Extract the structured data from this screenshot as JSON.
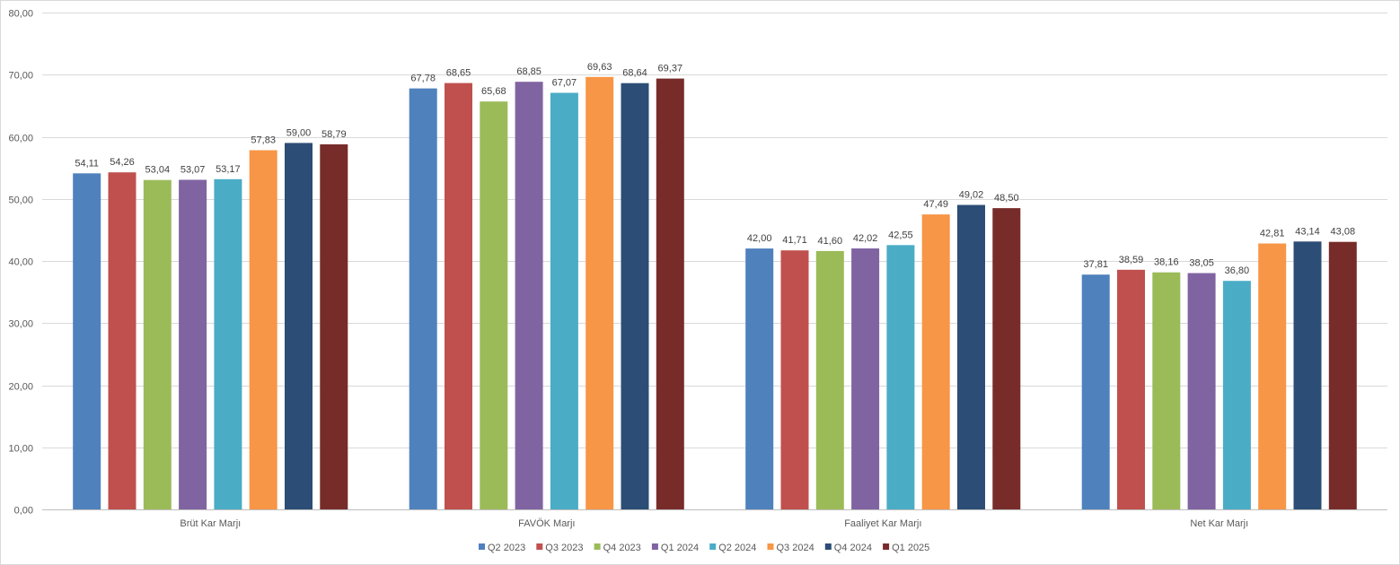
{
  "chart_data": {
    "type": "bar",
    "categories": [
      "Brüt Kar Marjı",
      "FAVÖK Marjı",
      "Faaliyet Kar Marjı",
      "Net Kar Marjı"
    ],
    "series": [
      {
        "name": "Q2 2023",
        "color": "#4f81bd",
        "values": [
          54.11,
          67.78,
          42.0,
          37.81
        ],
        "labels": [
          "54,11",
          "67,78",
          "42,00",
          "37,81"
        ]
      },
      {
        "name": "Q3 2023",
        "color": "#c0504d",
        "values": [
          54.26,
          68.65,
          41.71,
          38.59
        ],
        "labels": [
          "54,26",
          "68,65",
          "41,71",
          "38,59"
        ]
      },
      {
        "name": "Q4 2023",
        "color": "#9bbb59",
        "values": [
          53.04,
          65.68,
          41.6,
          38.16
        ],
        "labels": [
          "53,04",
          "65,68",
          "41,60",
          "38,16"
        ]
      },
      {
        "name": "Q1 2024",
        "color": "#8064a2",
        "values": [
          53.07,
          68.85,
          42.02,
          38.05
        ],
        "labels": [
          "53,07",
          "68,85",
          "42,02",
          "38,05"
        ]
      },
      {
        "name": "Q2 2024",
        "color": "#4bacc6",
        "values": [
          53.17,
          67.07,
          42.55,
          36.8
        ],
        "labels": [
          "53,17",
          "67,07",
          "42,55",
          "36,80"
        ]
      },
      {
        "name": "Q3 2024",
        "color": "#f79646",
        "values": [
          57.83,
          69.63,
          47.49,
          42.81
        ],
        "labels": [
          "57,83",
          "69,63",
          "47,49",
          "42,81"
        ]
      },
      {
        "name": "Q4 2024",
        "color": "#2c4d75",
        "values": [
          59.0,
          68.64,
          49.02,
          43.14
        ],
        "labels": [
          "59,00",
          "68,64",
          "49,02",
          "43,14"
        ]
      },
      {
        "name": "Q1 2025",
        "color": "#772c2a",
        "values": [
          58.79,
          69.37,
          48.5,
          43.08
        ],
        "labels": [
          "58,79",
          "69,37",
          "48,50",
          "43,08"
        ]
      }
    ],
    "ylim": [
      0,
      80
    ],
    "yticks": [
      0,
      10,
      20,
      30,
      40,
      50,
      60,
      70,
      80
    ],
    "ytick_labels": [
      "0,00",
      "10,00",
      "20,00",
      "30,00",
      "40,00",
      "50,00",
      "60,00",
      "70,00",
      "80,00"
    ],
    "grid": true,
    "legend_position": "bottom-center",
    "title": "",
    "xlabel": "",
    "ylabel": ""
  }
}
